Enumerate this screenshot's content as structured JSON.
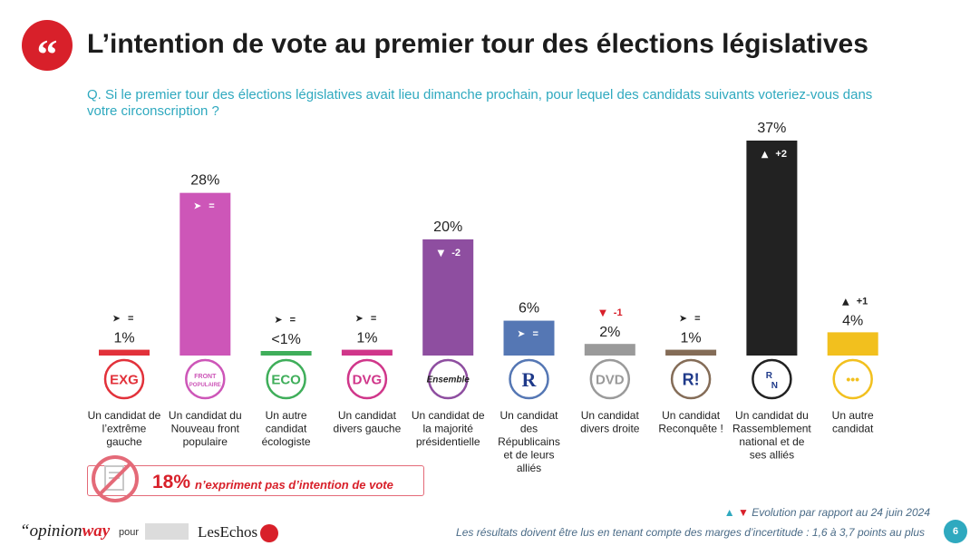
{
  "header": {
    "title": "L’intention de vote au premier tour des élections législatives",
    "question": "Q. Si le premier tour des élections législatives avait lieu dimanche prochain, pour lequel des candidats suivants voteriez-vous dans votre circonscription ?"
  },
  "chart_data": {
    "type": "bar",
    "title": "L’intention de vote au premier tour des élections législatives",
    "xlabel": "",
    "ylabel": "",
    "ylim": [
      0,
      37
    ],
    "unit": "%",
    "categories": [
      "Un candidat de l’extrême gauche",
      "Un candidat du Nouveau front populaire",
      "Un autre candidat écologiste",
      "Un candidat divers gauche",
      "Un candidat de la majorité présidentielle",
      "Un candidat des Républicains et de leurs alliés",
      "Un candidat divers droite",
      "Un candidat Reconquête !",
      "Un candidat du Rassemblement national et de ses alliés",
      "Un autre candidat"
    ],
    "values": [
      1,
      28,
      0.5,
      1,
      20,
      6,
      2,
      1,
      37,
      4
    ],
    "value_labels": [
      "1%",
      "28%",
      "<1%",
      "1%",
      "20%",
      "6%",
      "2%",
      "1%",
      "37%",
      "4%"
    ],
    "evolution": [
      "=",
      "=",
      "=",
      "=",
      "-2",
      "=",
      "-1",
      "=",
      "+2",
      "+1"
    ],
    "evolution_direction": [
      "flat",
      "flat",
      "flat",
      "flat",
      "down",
      "flat",
      "down",
      "flat",
      "up",
      "up"
    ],
    "colors": [
      "#e2313a",
      "#cd56b8",
      "#3fae5a",
      "#d0368a",
      "#8e4ea0",
      "#5577b4",
      "#9a9a9a",
      "#846c57",
      "#222222",
      "#f2c01e"
    ],
    "party_icons": [
      "EXG",
      "FRONT POPULAIRE",
      "ECO",
      "DVG",
      "Ensemble",
      "R",
      "DVD",
      "R!",
      "RN",
      "•••"
    ],
    "party_icon_names": [
      "exg-icon",
      "nfp-icon",
      "eco-icon",
      "dvg-icon",
      "ensemble-icon",
      "lr-icon",
      "dvd-icon",
      "reconquete-icon",
      "rn-icon",
      "other-candidate-icon"
    ]
  },
  "no_vote": {
    "pct": "18%",
    "text": "n’expriment pas d’intention de vote"
  },
  "footer": {
    "legend_up": "▲",
    "legend_down": "▼",
    "legend": "Evolution par rapport au 24 juin 2024",
    "note": "Les résultats doivent être lus en tenant compte des marges d’incertitude : 1,6 à 3,7 points au plus",
    "brand_prefix": "“opinion",
    "brand_suffix": "way",
    "pour": "pour",
    "partner": "LesEchos",
    "page": "6"
  }
}
